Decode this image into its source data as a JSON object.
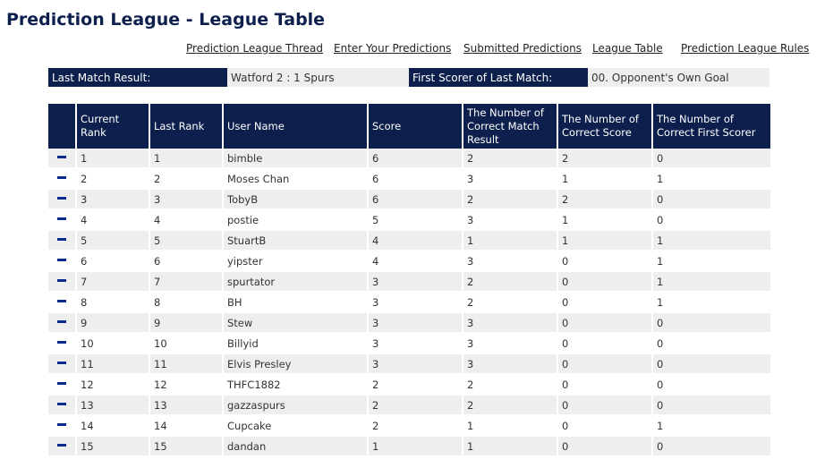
{
  "page_title": "Prediction League - League Table",
  "nav": [
    {
      "label": "Prediction League Thread"
    },
    {
      "label": "Enter Your Predictions"
    },
    {
      "label": "Submitted Predictions"
    },
    {
      "label": "League Table"
    },
    {
      "label": "Prediction League Rules"
    }
  ],
  "info": {
    "last_result_label": "Last Match Result:",
    "last_result_value": "Watford 2 : 1 Spurs",
    "first_scorer_label": "First Scorer of Last Match:",
    "first_scorer_value": "00. Opponent's Own Goal"
  },
  "table": {
    "headers": [
      "",
      "Current Rank",
      "Last Rank",
      "User Name",
      "Score",
      "The Number of Correct Match Result",
      "The Number of Correct Score",
      "The Number of Correct First Scorer"
    ],
    "movement_icon": "dash-icon",
    "movement_color": "#0a2a8c",
    "header_color": "#0c1f4d",
    "rows": [
      {
        "current_rank": "1",
        "last_rank": "1",
        "user": "bimble",
        "score": "6",
        "match_result": "2",
        "correct_score": "2",
        "first_scorer": "0"
      },
      {
        "current_rank": "2",
        "last_rank": "2",
        "user": "Moses Chan",
        "score": "6",
        "match_result": "3",
        "correct_score": "1",
        "first_scorer": "1"
      },
      {
        "current_rank": "3",
        "last_rank": "3",
        "user": "TobyB",
        "score": "6",
        "match_result": "2",
        "correct_score": "2",
        "first_scorer": "0"
      },
      {
        "current_rank": "4",
        "last_rank": "4",
        "user": "postie",
        "score": "5",
        "match_result": "3",
        "correct_score": "1",
        "first_scorer": "0"
      },
      {
        "current_rank": "5",
        "last_rank": "5",
        "user": "StuartB",
        "score": "4",
        "match_result": "1",
        "correct_score": "1",
        "first_scorer": "1"
      },
      {
        "current_rank": "6",
        "last_rank": "6",
        "user": "yipster",
        "score": "4",
        "match_result": "3",
        "correct_score": "0",
        "first_scorer": "1"
      },
      {
        "current_rank": "7",
        "last_rank": "7",
        "user": "spurtator",
        "score": "3",
        "match_result": "2",
        "correct_score": "0",
        "first_scorer": "1"
      },
      {
        "current_rank": "8",
        "last_rank": "8",
        "user": "BH",
        "score": "3",
        "match_result": "2",
        "correct_score": "0",
        "first_scorer": "1"
      },
      {
        "current_rank": "9",
        "last_rank": "9",
        "user": "Stew",
        "score": "3",
        "match_result": "3",
        "correct_score": "0",
        "first_scorer": "0"
      },
      {
        "current_rank": "10",
        "last_rank": "10",
        "user": "Billyid",
        "score": "3",
        "match_result": "3",
        "correct_score": "0",
        "first_scorer": "0"
      },
      {
        "current_rank": "11",
        "last_rank": "11",
        "user": "Elvis Presley",
        "score": "3",
        "match_result": "3",
        "correct_score": "0",
        "first_scorer": "0"
      },
      {
        "current_rank": "12",
        "last_rank": "12",
        "user": "THFC1882",
        "score": "2",
        "match_result": "2",
        "correct_score": "0",
        "first_scorer": "0"
      },
      {
        "current_rank": "13",
        "last_rank": "13",
        "user": "gazzaspurs",
        "score": "2",
        "match_result": "2",
        "correct_score": "0",
        "first_scorer": "0"
      },
      {
        "current_rank": "14",
        "last_rank": "14",
        "user": "Cupcake",
        "score": "2",
        "match_result": "1",
        "correct_score": "0",
        "first_scorer": "1"
      },
      {
        "current_rank": "15",
        "last_rank": "15",
        "user": "dandan",
        "score": "1",
        "match_result": "1",
        "correct_score": "0",
        "first_scorer": "0"
      }
    ]
  }
}
